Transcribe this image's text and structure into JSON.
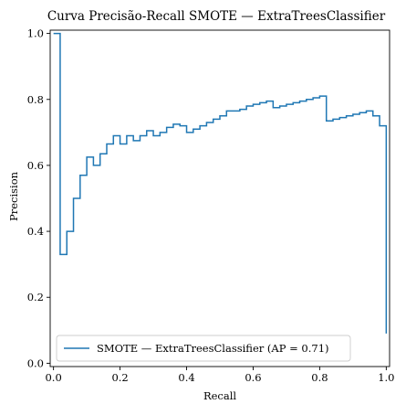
{
  "chart_data": {
    "type": "line",
    "title": "Curva Precisão-Recall SMOTE — ExtraTreesClassifier",
    "xlabel": "Recall",
    "ylabel": "Precision",
    "xlim": [
      -0.01,
      1.01
    ],
    "ylim": [
      -0.01,
      1.01
    ],
    "xticks": [
      "0.0",
      "0.2",
      "0.4",
      "0.6",
      "0.8",
      "1.0"
    ],
    "yticks": [
      "0.0",
      "0.2",
      "0.4",
      "0.6",
      "0.8",
      "1.0"
    ],
    "grid": false,
    "legend_position": "lower-left",
    "series": [
      {
        "name": "SMOTE — ExtraTreesClassifier (AP = 0.71)",
        "color": "#1f77b4",
        "drawstyle": "steps-post",
        "recall": [
          1.0,
          1.0,
          0.98,
          0.98,
          0.96,
          0.96,
          0.94,
          0.94,
          0.92,
          0.92,
          0.9,
          0.9,
          0.88,
          0.88,
          0.86,
          0.86,
          0.84,
          0.84,
          0.82,
          0.82,
          0.8,
          0.8,
          0.78,
          0.78,
          0.76,
          0.76,
          0.74,
          0.74,
          0.72,
          0.72,
          0.7,
          0.7,
          0.68,
          0.68,
          0.66,
          0.66,
          0.64,
          0.64,
          0.62,
          0.62,
          0.6,
          0.6,
          0.58,
          0.58,
          0.56,
          0.56,
          0.54,
          0.54,
          0.52,
          0.52,
          0.5,
          0.5,
          0.48,
          0.48,
          0.46,
          0.46,
          0.44,
          0.44,
          0.42,
          0.42,
          0.4,
          0.4,
          0.38,
          0.38,
          0.36,
          0.36,
          0.34,
          0.34,
          0.32,
          0.32,
          0.3,
          0.3,
          0.28,
          0.28,
          0.26,
          0.26,
          0.24,
          0.24,
          0.22,
          0.22,
          0.2,
          0.2,
          0.18,
          0.18,
          0.16,
          0.16,
          0.14,
          0.14,
          0.12,
          0.12,
          0.1,
          0.1,
          0.08,
          0.08,
          0.06,
          0.06,
          0.04,
          0.04,
          0.02,
          0.02,
          0.0
        ],
        "precision": [
          0.09,
          0.72,
          0.72,
          0.75,
          0.75,
          0.765,
          0.765,
          0.76,
          0.76,
          0.755,
          0.755,
          0.75,
          0.75,
          0.745,
          0.745,
          0.74,
          0.74,
          0.735,
          0.735,
          0.81,
          0.81,
          0.805,
          0.805,
          0.8,
          0.8,
          0.795,
          0.795,
          0.79,
          0.79,
          0.785,
          0.785,
          0.78,
          0.78,
          0.775,
          0.775,
          0.795,
          0.795,
          0.79,
          0.79,
          0.785,
          0.785,
          0.78,
          0.78,
          0.77,
          0.77,
          0.765,
          0.765,
          0.765,
          0.765,
          0.75,
          0.75,
          0.74,
          0.74,
          0.73,
          0.73,
          0.72,
          0.72,
          0.71,
          0.71,
          0.7,
          0.7,
          0.72,
          0.72,
          0.725,
          0.725,
          0.715,
          0.715,
          0.7,
          0.7,
          0.69,
          0.69,
          0.705,
          0.705,
          0.69,
          0.69,
          0.675,
          0.675,
          0.69,
          0.69,
          0.665,
          0.665,
          0.69,
          0.69,
          0.665,
          0.665,
          0.635,
          0.635,
          0.6,
          0.6,
          0.625,
          0.625,
          0.57,
          0.57,
          0.5,
          0.5,
          0.4,
          0.4,
          0.33,
          0.33,
          1.0,
          1.0
        ]
      }
    ]
  }
}
